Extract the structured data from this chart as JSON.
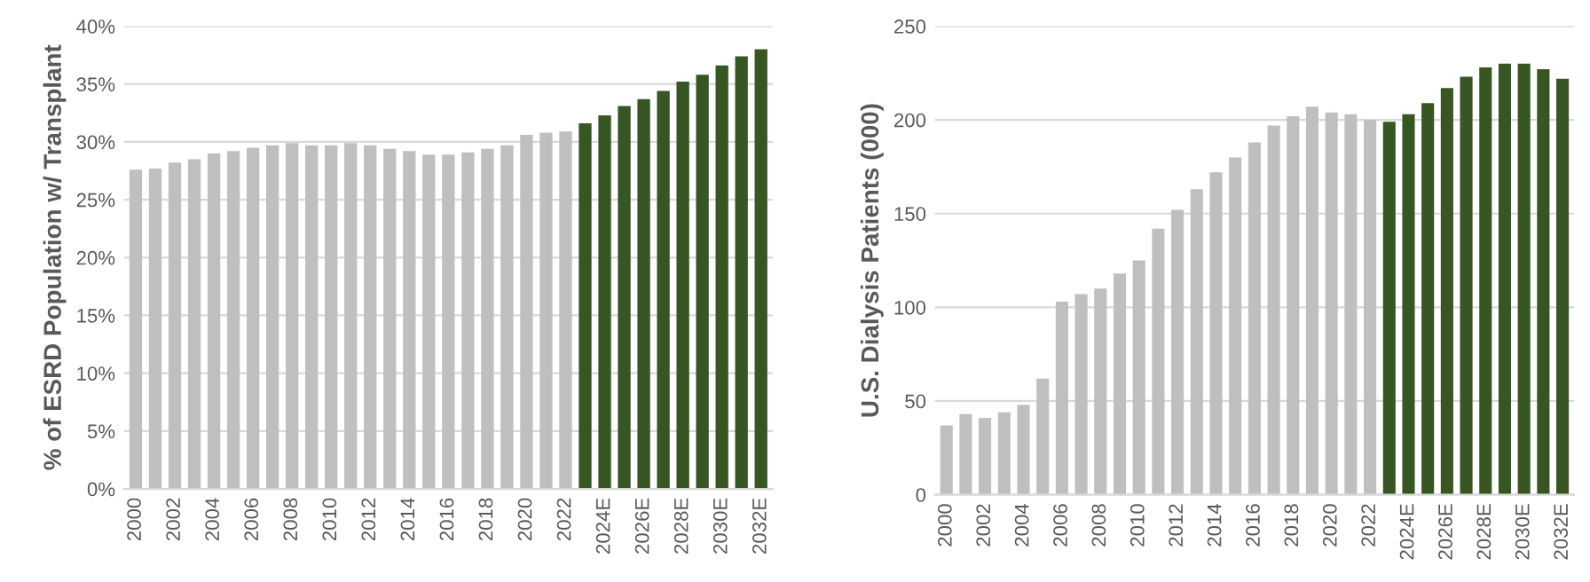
{
  "chart_data": [
    {
      "type": "bar",
      "ylabel": "% of ESRD Population w/ Transplant",
      "categories": [
        "2000",
        null,
        "2002",
        null,
        "2004",
        null,
        "2006",
        null,
        "2008",
        null,
        "2010",
        null,
        "2012",
        null,
        "2014",
        null,
        "2016",
        null,
        "2018",
        null,
        "2020",
        null,
        "2022",
        null,
        "2024E",
        null,
        "2026E",
        null,
        "2028E",
        null,
        "2030E",
        null,
        "2032E"
      ],
      "values": [
        27.6,
        27.7,
        28.2,
        28.5,
        29.0,
        29.2,
        29.5,
        29.7,
        29.9,
        29.7,
        29.7,
        29.9,
        29.7,
        29.4,
        29.2,
        28.9,
        28.9,
        29.1,
        29.4,
        29.7,
        30.6,
        30.8,
        30.9,
        31.6,
        32.3,
        33.1,
        33.7,
        34.4,
        35.2,
        35.8,
        36.6,
        37.4,
        38.0
      ],
      "colors": [
        "#bfbfbf",
        "#bfbfbf",
        "#bfbfbf",
        "#bfbfbf",
        "#bfbfbf",
        "#bfbfbf",
        "#bfbfbf",
        "#bfbfbf",
        "#bfbfbf",
        "#bfbfbf",
        "#bfbfbf",
        "#bfbfbf",
        "#bfbfbf",
        "#bfbfbf",
        "#bfbfbf",
        "#bfbfbf",
        "#bfbfbf",
        "#bfbfbf",
        "#bfbfbf",
        "#bfbfbf",
        "#bfbfbf",
        "#bfbfbf",
        "#bfbfbf",
        "#375623",
        "#375623",
        "#375623",
        "#375623",
        "#375623",
        "#375623",
        "#375623",
        "#375623",
        "#375623",
        "#375623"
      ],
      "ylim": [
        0,
        40
      ],
      "yticks": [
        {
          "value": 0,
          "label": "0%"
        },
        {
          "value": 5,
          "label": "5%"
        },
        {
          "value": 10,
          "label": "10%"
        },
        {
          "value": 15,
          "label": "15%"
        },
        {
          "value": 20,
          "label": "20%"
        },
        {
          "value": 25,
          "label": "25%"
        },
        {
          "value": 30,
          "label": "30%"
        },
        {
          "value": 35,
          "label": "35%"
        },
        {
          "value": 40,
          "label": "40%"
        }
      ],
      "grid": "y"
    },
    {
      "type": "bar",
      "ylabel": "U.S. Dialysis Patients (000)",
      "categories": [
        "2000",
        null,
        "2002",
        null,
        "2004",
        null,
        "2006",
        null,
        "2008",
        null,
        "2010",
        null,
        "2012",
        null,
        "2014",
        null,
        "2016",
        null,
        "2018",
        null,
        "2020",
        null,
        "2022",
        null,
        "2024E",
        null,
        "2026E",
        null,
        "2028E",
        null,
        "2030E",
        null,
        "2032E"
      ],
      "values": [
        37,
        43,
        41,
        44,
        48,
        62,
        103,
        107,
        110,
        118,
        125,
        142,
        152,
        163,
        172,
        180,
        188,
        197,
        202,
        207,
        204,
        203,
        200,
        199,
        203,
        209,
        217,
        223,
        228,
        230,
        230,
        227,
        222
      ],
      "colors": [
        "#bfbfbf",
        "#bfbfbf",
        "#bfbfbf",
        "#bfbfbf",
        "#bfbfbf",
        "#bfbfbf",
        "#bfbfbf",
        "#bfbfbf",
        "#bfbfbf",
        "#bfbfbf",
        "#bfbfbf",
        "#bfbfbf",
        "#bfbfbf",
        "#bfbfbf",
        "#bfbfbf",
        "#bfbfbf",
        "#bfbfbf",
        "#bfbfbf",
        "#bfbfbf",
        "#bfbfbf",
        "#bfbfbf",
        "#bfbfbf",
        "#bfbfbf",
        "#375623",
        "#375623",
        "#375623",
        "#375623",
        "#375623",
        "#375623",
        "#375623",
        "#375623",
        "#375623",
        "#375623"
      ],
      "ylim": [
        0,
        250
      ],
      "yticks": [
        0,
        50,
        100,
        150,
        200,
        250
      ],
      "grid": "y"
    }
  ]
}
